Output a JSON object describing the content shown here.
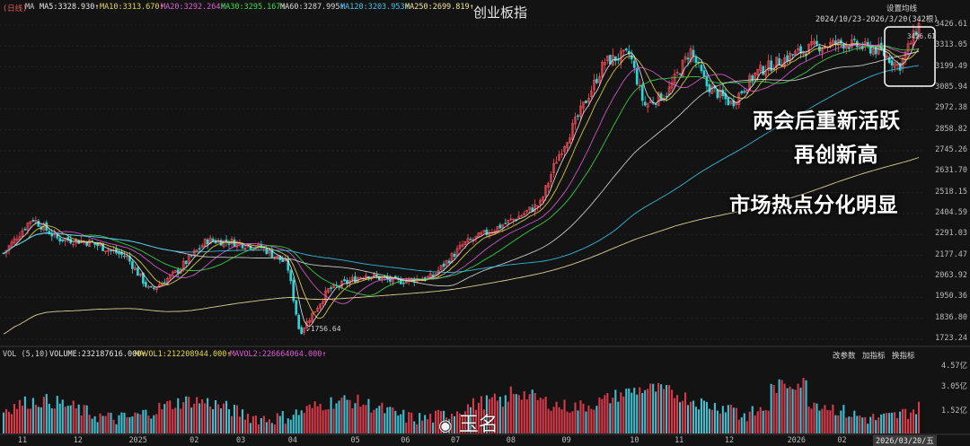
{
  "header": {
    "period_tag": "(日线)",
    "ma_label": "MA",
    "ma5": "MA5:3328.930↑",
    "ma10": "MA10:3313.670↑",
    "ma20": "MA20:3292.264↑",
    "ma30": "MA30:3295.167↑",
    "ma60": "MA60:3287.995↑",
    "ma120": "MA120:3203.953↑",
    "ma250": "MA250:2699.819↑",
    "title": "创业板指",
    "settings_label": "设置均线",
    "range_label": "2024/10/23-2026/3/20(342根)"
  },
  "annotations": {
    "line1": "两会后重新活跃",
    "line2": "再创新高",
    "line3": "市场热点分化明显",
    "low_label": "1756.64",
    "high_label": "3426.61"
  },
  "volume_header": {
    "vol_label": "VOL (5,10)",
    "volume": "VOLUME:232187616.000↑",
    "mavol1": "MAVOL1:212208944.000↑",
    "mavol2": "MAVOL2:226664064.000↑",
    "btn_params": "改参数",
    "btn_add": "加指标",
    "btn_switch": "换指标"
  },
  "price_axis": [
    "3426.61",
    "3313.05",
    "3199.49",
    "3085.94",
    "2972.38",
    "2858.82",
    "2745.26",
    "2631.70",
    "2518.15",
    "2404.59",
    "2291.03",
    "2177.47",
    "2063.92",
    "1950.36",
    "1836.80",
    "1723.24"
  ],
  "volume_axis": [
    "4.57亿",
    "3.05亿",
    "1.52亿"
  ],
  "x_axis": [
    "11",
    "12",
    "2025",
    "02",
    "03",
    "04",
    "05",
    "06",
    "07",
    "08",
    "09",
    "10",
    "11",
    "12",
    "2026",
    "02"
  ],
  "x_last": "2026/03/20/五",
  "watermark": "玉名",
  "colors": {
    "up": "#ff4d5a",
    "down": "#2fd3d3",
    "ma5": "#e8e8e8",
    "ma10": "#e8d84a",
    "ma20": "#e05cd8",
    "ma30": "#3fdc4f",
    "ma60": "#d8d8d8",
    "ma120": "#38c8f0",
    "ma250": "#f0e6a0"
  },
  "chart_data": {
    "type": "candlestick",
    "title": "创业板指",
    "period": "daily",
    "range": "2024/10/23-2026/3/20",
    "bars": 342,
    "ylim": [
      1723.24,
      3426.61
    ],
    "x_ticks": [
      "11",
      "12",
      "2025",
      "02",
      "03",
      "04",
      "05",
      "06",
      "07",
      "08",
      "09",
      "10",
      "11",
      "12",
      "2026",
      "02",
      "2026/03/20/五"
    ],
    "close_series": {
      "x": [
        "2024-10-23",
        "2024-11-08",
        "2024-11-22",
        "2024-12-10",
        "2024-12-31",
        "2025-01-13",
        "2025-01-27",
        "2025-02-14",
        "2025-02-28",
        "2025-03-17",
        "2025-03-31",
        "2025-04-07",
        "2025-04-23",
        "2025-05-14",
        "2025-05-30",
        "2025-06-20",
        "2025-07-08",
        "2025-07-25",
        "2025-08-08",
        "2025-08-20",
        "2025-08-29",
        "2025-09-10",
        "2025-09-25",
        "2025-10-09",
        "2025-10-17",
        "2025-10-30",
        "2025-11-12",
        "2025-11-21",
        "2025-12-05",
        "2025-12-19",
        "2026-01-07",
        "2026-01-20",
        "2026-02-05",
        "2026-02-26",
        "2026-03-09",
        "2026-03-20"
      ],
      "values": [
        2190,
        2380,
        2270,
        2250,
        2170,
        1985,
        2080,
        2260,
        2250,
        2220,
        2130,
        1756.64,
        1990,
        2075,
        2035,
        2060,
        2240,
        2320,
        2390,
        2460,
        2700,
        2930,
        3230,
        3270,
        2990,
        3060,
        3290,
        3100,
        3000,
        3170,
        3260,
        3310,
        3330,
        3290,
        3200,
        3426.61
      ]
    },
    "moving_averages": [
      {
        "name": "MA5",
        "last": 3328.93
      },
      {
        "name": "MA10",
        "last": 3313.67
      },
      {
        "name": "MA20",
        "last": 3292.264
      },
      {
        "name": "MA30",
        "last": 3295.167
      },
      {
        "name": "MA60",
        "last": 3287.995
      },
      {
        "name": "MA120",
        "last": 3203.953
      },
      {
        "name": "MA250",
        "last": 2699.819
      }
    ],
    "low": 1756.64,
    "high": 3426.61,
    "volume": {
      "ylabels": [
        "4.57亿",
        "3.05亿",
        "1.52亿"
      ],
      "last_volume": 232187616.0,
      "mavol1": 212208944.0,
      "mavol2": 226664064.0
    }
  }
}
